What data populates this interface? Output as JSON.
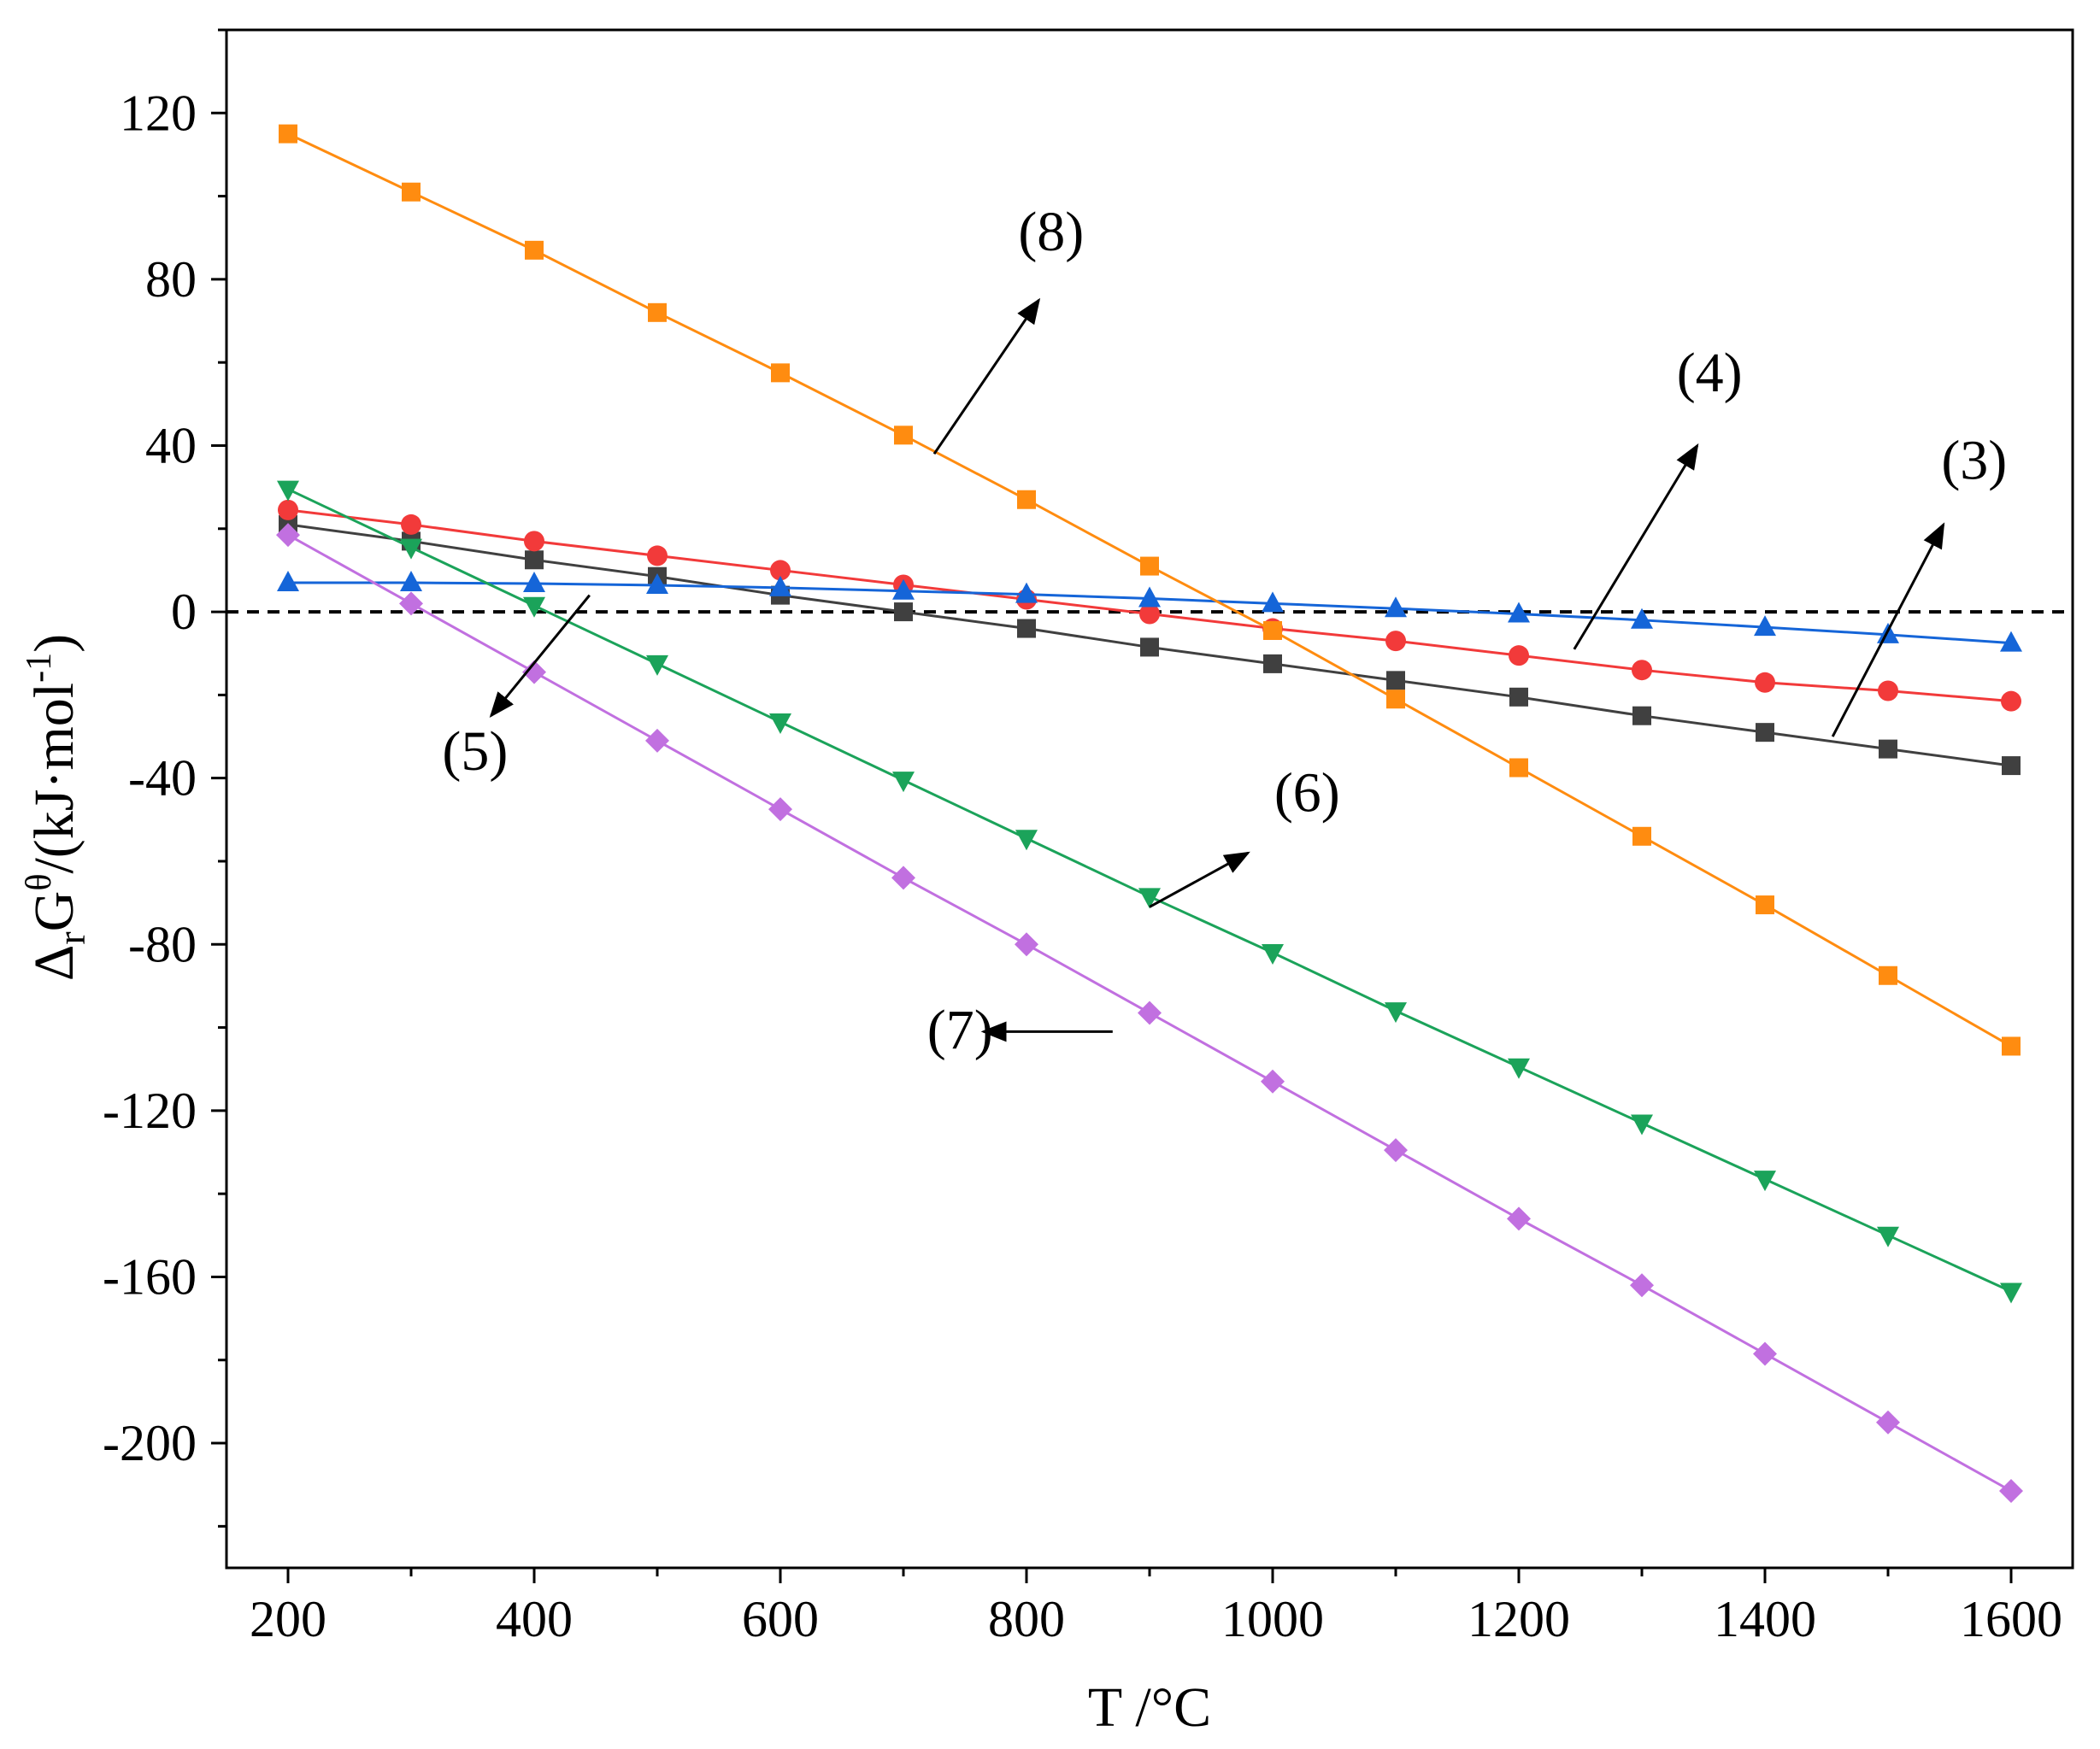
{
  "chart_data": {
    "type": "line",
    "title": "",
    "xlabel": "T /°C",
    "ylabel_main": "Δ",
    "ylabel_sub_r": "r",
    "ylabel_G": "G",
    "ylabel_sup_theta": "θ",
    "ylabel_units_start": "/(kJ·mol",
    "ylabel_units_sup": "-1",
    "ylabel_units_end": ")",
    "xlim": [
      150,
      1650
    ],
    "ylim": [
      -230,
      140
    ],
    "x_ticks": [
      200,
      400,
      600,
      800,
      1000,
      1200,
      1400,
      1600
    ],
    "y_ticks": [
      120,
      80,
      40,
      0,
      -40,
      -80,
      -120,
      -160,
      -200
    ],
    "x_tick_labels": [
      "200",
      "400",
      "600",
      "800",
      "1000",
      "1200",
      "1400",
      "1600"
    ],
    "y_tick_labels": [
      "120",
      "80",
      "40",
      "0",
      "-40",
      "-80",
      "-120",
      "-160",
      "-200"
    ],
    "zero_reference_line": 0,
    "x": [
      200,
      300,
      400,
      500,
      600,
      700,
      800,
      900,
      1000,
      1100,
      1200,
      1300,
      1400,
      1500,
      1600
    ],
    "series": [
      {
        "name": "(3)",
        "color": "#404040",
        "marker": "square",
        "values": [
          21,
          17,
          12.5,
          8.5,
          4,
          0,
          -4,
          -8.5,
          -12.5,
          -16.5,
          -20.5,
          -25,
          -29,
          -33,
          -37
        ]
      },
      {
        "name": "(4)",
        "color": "#f23a3a",
        "marker": "circle",
        "values": [
          24.5,
          21,
          17,
          13.5,
          10,
          6.5,
          3,
          -0.5,
          -4,
          -7,
          -10.5,
          -14,
          -17,
          -19,
          -21.5
        ]
      },
      {
        "name": "(5)",
        "color": "#1565d8",
        "marker": "triangle-up",
        "values": [
          7,
          7,
          6.8,
          6.4,
          5.8,
          5,
          4.2,
          3.2,
          2,
          0.8,
          -0.5,
          -2,
          -3.7,
          -5.5,
          -7.5
        ]
      },
      {
        "name": "(6)",
        "color": "#1ba35a",
        "marker": "triangle-down",
        "values": [
          29.5,
          15.5,
          1.5,
          -12.5,
          -26.5,
          -40.5,
          -54.5,
          -68.5,
          -82,
          -96,
          -109.5,
          -123,
          -136.5,
          -150,
          -163.5
        ]
      },
      {
        "name": "(7)",
        "color": "#c170e0",
        "marker": "diamond",
        "values": [
          18.5,
          2,
          -14.5,
          -31,
          -47.5,
          -64,
          -80,
          -96.5,
          -113,
          -129.5,
          -146,
          -162,
          -178.5,
          -195,
          -211.5
        ]
      },
      {
        "name": "(8)",
        "color": "#ff8c10",
        "marker": "square",
        "values": [
          115,
          101,
          87,
          72,
          57.5,
          42.5,
          27,
          11,
          -4.5,
          -21,
          -37.5,
          -54,
          -70.5,
          -87.5,
          -104.5
        ]
      }
    ],
    "annotations": [
      {
        "label": "(8)",
        "text_at": [
          820,
          87
        ],
        "arrow_from": [
          725,
          38
        ],
        "arrow_to": [
          810,
          75
        ]
      },
      {
        "label": "(4)",
        "text_at": [
          1355,
          53
        ],
        "arrow_from": [
          1245,
          -9
        ],
        "arrow_to": [
          1345,
          40
        ]
      },
      {
        "label": "(3)",
        "text_at": [
          1570,
          32
        ],
        "arrow_from": [
          1455,
          -30
        ],
        "arrow_to": [
          1545,
          21
        ]
      },
      {
        "label": "(5)",
        "text_at": [
          352,
          -38
        ],
        "arrow_from": [
          445,
          4
        ],
        "arrow_to": [
          365,
          -25
        ]
      },
      {
        "label": "(6)",
        "text_at": [
          1028,
          -48
        ],
        "arrow_from": [
          900,
          -71
        ],
        "arrow_to": [
          980,
          -58
        ]
      },
      {
        "label": "(7)",
        "text_at": [
          746,
          -105
        ],
        "arrow_from": [
          870,
          -101
        ],
        "arrow_to": [
          765,
          -101
        ]
      }
    ]
  }
}
